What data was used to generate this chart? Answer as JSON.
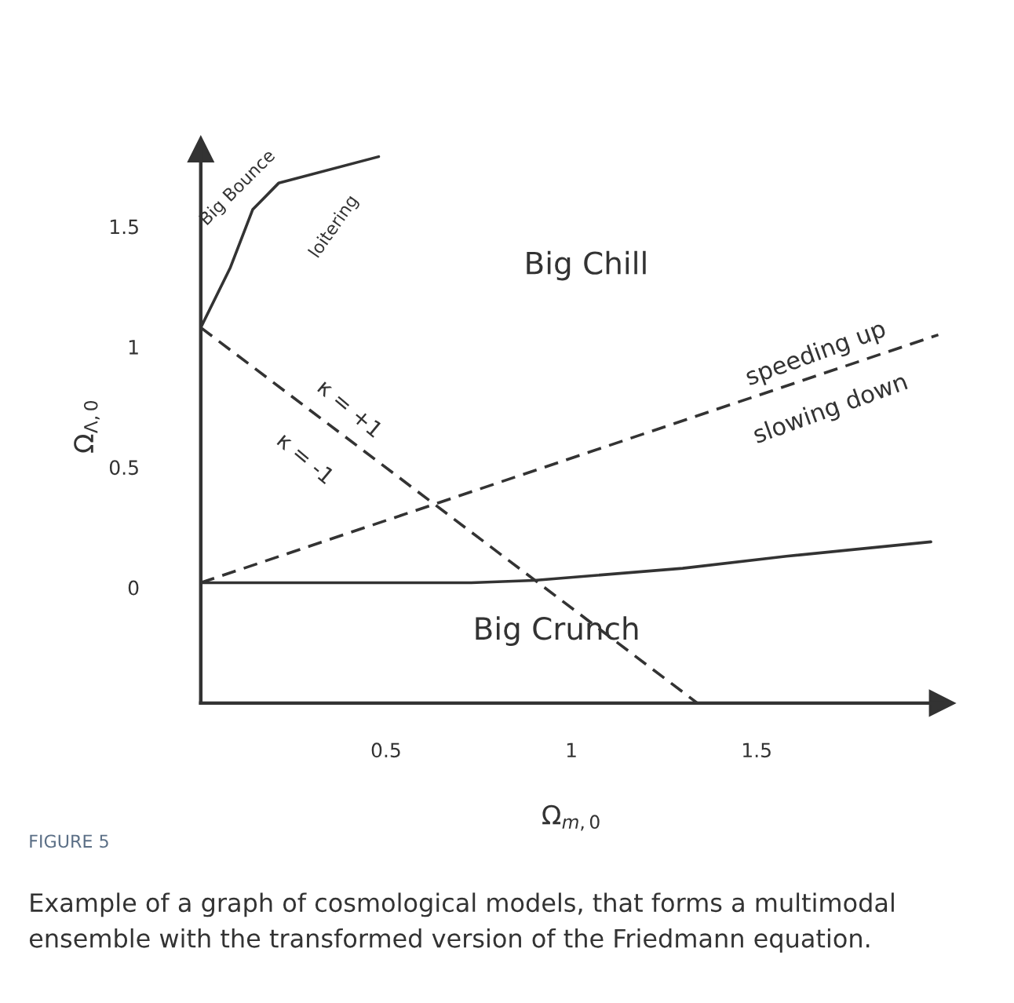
{
  "chart_data": {
    "type": "line",
    "xlabel": "Ω$_{m,0}$",
    "ylabel": "Ω$_{Λ,0}$",
    "xlim": [
      0,
      2.0
    ],
    "ylim": [
      -0.48,
      1.82
    ],
    "xticks": [
      0.5,
      1,
      1.5
    ],
    "yticks": [
      0,
      0.5,
      1,
      1.5
    ],
    "grid": false,
    "legend": false,
    "marker": "none",
    "series": [
      {
        "color": "#333333",
        "line_style": "dashed",
        "x": [
          0,
          1.34
        ],
        "values": [
          1.08,
          -0.48
        ]
      },
      {
        "color": "#333333",
        "line_style": "dashed",
        "x": [
          0,
          1.99
        ],
        "values": [
          0.02,
          1.05
        ]
      },
      {
        "color": "#333333",
        "line_style": "solid",
        "x": [
          0,
          0.08,
          0.14,
          0.21,
          0.48
        ],
        "values": [
          1.08,
          1.33,
          1.57,
          1.68,
          1.79
        ]
      },
      {
        "color": "#333333",
        "line_style": "solid",
        "x": [
          0,
          0.73,
          0.9,
          1.3,
          1.58,
          1.97
        ],
        "values": [
          0.02,
          0.02,
          0.03,
          0.08,
          0.13,
          0.19
        ]
      }
    ],
    "annotations": [
      "Big Chill",
      "Big Crunch",
      "speeding up",
      "slowing down",
      "κ = +1",
      "κ = -1",
      "Big Bounce",
      "loitering",
      "FIGURE 5",
      "Example of a graph of cosmological models, that forms a multimodal ensemble with the transformed version of the Friedmann equation."
    ]
  }
}
